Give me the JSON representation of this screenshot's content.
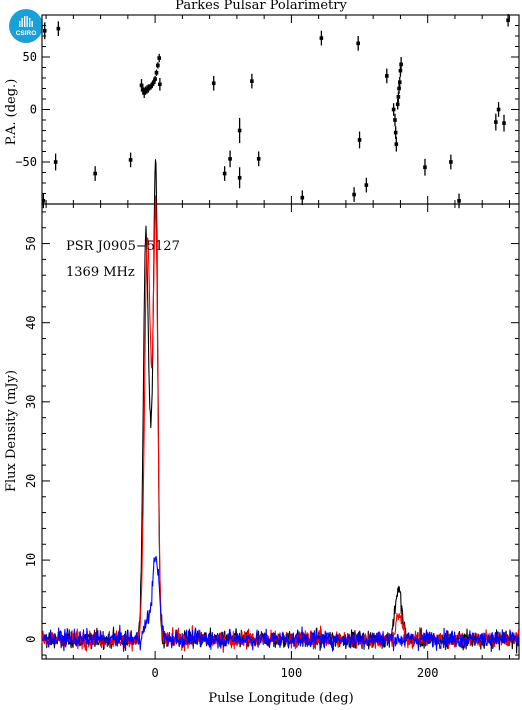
{
  "page": {
    "title": "Parkes Pulsar Polarimetry",
    "logo_text": "CSIRO"
  },
  "colors": {
    "total_intensity": "#000000",
    "linear_polarization": "#ff0000",
    "circular_polarization": "#0000ff",
    "logo": "#1aa0d8"
  },
  "chart_data": [
    {
      "type": "scatter",
      "panel": "position-angle",
      "xlabel": "",
      "ylabel": "P.A. (deg.)",
      "xlim": [
        -83,
        267
      ],
      "ylim": [
        -90,
        90
      ],
      "yticks": [
        -50,
        0,
        50
      ],
      "points": [
        {
          "x": -82,
          "y": -87,
          "err": 7
        },
        {
          "x": -81,
          "y": 75,
          "err": 8
        },
        {
          "x": -73,
          "y": -50,
          "err": 8
        },
        {
          "x": -71,
          "y": 77,
          "err": 7
        },
        {
          "x": -44,
          "y": -61,
          "err": 7
        },
        {
          "x": -18,
          "y": -48,
          "err": 7
        },
        {
          "x": -10,
          "y": 23,
          "err": 6
        },
        {
          "x": -9,
          "y": 19,
          "err": 5
        },
        {
          "x": -8,
          "y": 16,
          "err": 5
        },
        {
          "x": -7,
          "y": 18,
          "err": 4
        },
        {
          "x": -6,
          "y": 19,
          "err": 4
        },
        {
          "x": -5,
          "y": 20,
          "err": 4
        },
        {
          "x": -4,
          "y": 21,
          "err": 3
        },
        {
          "x": -3,
          "y": 22,
          "err": 3
        },
        {
          "x": -2,
          "y": 24,
          "err": 3
        },
        {
          "x": -1,
          "y": 26,
          "err": 3
        },
        {
          "x": 0,
          "y": 29,
          "err": 3
        },
        {
          "x": 1,
          "y": 35,
          "err": 3
        },
        {
          "x": 2,
          "y": 42,
          "err": 3
        },
        {
          "x": 3,
          "y": 49,
          "err": 4
        },
        {
          "x": 3.5,
          "y": 24,
          "err": 6
        },
        {
          "x": 43,
          "y": 25,
          "err": 7
        },
        {
          "x": 51,
          "y": -61,
          "err": 7
        },
        {
          "x": 55,
          "y": -47,
          "err": 8
        },
        {
          "x": 62,
          "y": -20,
          "err": 12
        },
        {
          "x": 62,
          "y": -65,
          "err": 10
        },
        {
          "x": 71,
          "y": 27,
          "err": 7
        },
        {
          "x": 76,
          "y": -47,
          "err": 7
        },
        {
          "x": 108,
          "y": -84,
          "err": 7
        },
        {
          "x": 122,
          "y": 68,
          "err": 7
        },
        {
          "x": 146,
          "y": -81,
          "err": 7
        },
        {
          "x": 149,
          "y": 63,
          "err": 7
        },
        {
          "x": 150,
          "y": -29,
          "err": 8
        },
        {
          "x": 155,
          "y": -72,
          "err": 7
        },
        {
          "x": 170,
          "y": 32,
          "err": 7
        },
        {
          "x": 175,
          "y": 0,
          "err": 6
        },
        {
          "x": 176,
          "y": -10,
          "err": 6
        },
        {
          "x": 176.5,
          "y": -22,
          "err": 6
        },
        {
          "x": 177,
          "y": -33,
          "err": 7
        },
        {
          "x": 178,
          "y": 5,
          "err": 5
        },
        {
          "x": 178.5,
          "y": 12,
          "err": 5
        },
        {
          "x": 179,
          "y": 20,
          "err": 5
        },
        {
          "x": 179.5,
          "y": 26,
          "err": 5
        },
        {
          "x": 180,
          "y": 37,
          "err": 6
        },
        {
          "x": 180.5,
          "y": 43,
          "err": 7
        },
        {
          "x": 198,
          "y": -55,
          "err": 8
        },
        {
          "x": 217,
          "y": -50,
          "err": 7
        },
        {
          "x": 223,
          "y": -87,
          "err": 7
        },
        {
          "x": 250,
          "y": -12,
          "err": 8
        },
        {
          "x": 252,
          "y": 0,
          "err": 7
        },
        {
          "x": 256,
          "y": -13,
          "err": 8
        },
        {
          "x": 259,
          "y": 85,
          "err": 6
        }
      ]
    },
    {
      "type": "line",
      "panel": "flux-density",
      "xlabel": "Pulse Longitude (deg)",
      "ylabel": "Flux Density (mJy)",
      "xlim": [
        -83,
        267
      ],
      "ylim": [
        -2.5,
        55
      ],
      "xticks": [
        0,
        100,
        200
      ],
      "yticks": [
        0,
        10,
        20,
        30,
        40,
        50
      ],
      "annotations": [
        "PSR J0905−5127",
        "1369 MHz"
      ],
      "profile_components": {
        "total_intensity": [
          {
            "center": -7,
            "width": 1.8,
            "amp": 45
          },
          {
            "center": 0.5,
            "width": 1.5,
            "amp": 53
          },
          {
            "center": -3,
            "width": 2.5,
            "amp": 20
          },
          {
            "center": 178.5,
            "width": 2.5,
            "amp": 6.3
          }
        ],
        "linear_polarization": [
          {
            "center": -6,
            "width": 2.0,
            "amp": 41
          },
          {
            "center": 0.5,
            "width": 1.6,
            "amp": 47
          },
          {
            "center": -3,
            "width": 2.5,
            "amp": 18
          },
          {
            "center": 179,
            "width": 2.2,
            "amp": 3
          }
        ],
        "circular_polarization": [
          {
            "center": 0.5,
            "width": 2.5,
            "amp": 10.5
          },
          {
            "center": -6,
            "width": 2,
            "amp": 2
          }
        ]
      },
      "noise_rms": {
        "total_intensity": 0.55,
        "linear_polarization": 0.55,
        "circular_polarization": 0.55
      },
      "series": [
        {
          "name": "",
          "color": "#000000"
        },
        {
          "name": "",
          "color": "#ff0000"
        },
        {
          "name": "",
          "color": "#0000ff"
        }
      ]
    }
  ]
}
